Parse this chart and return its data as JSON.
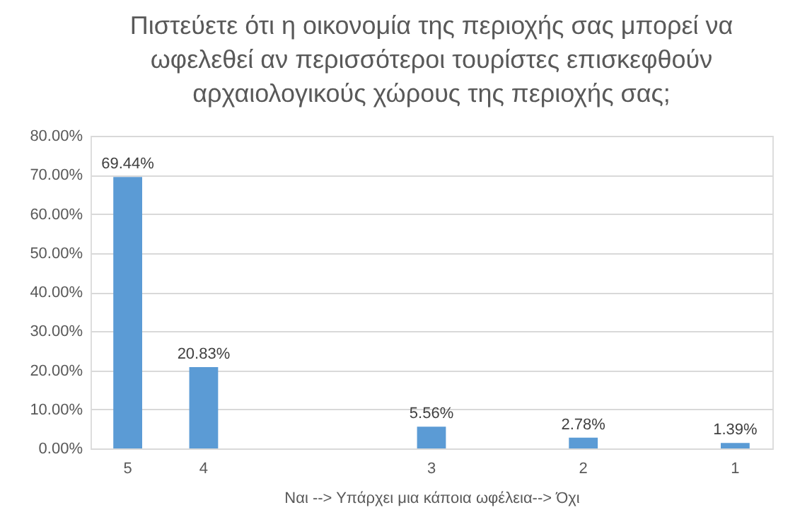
{
  "chart_data": {
    "type": "bar",
    "title": "Πιστεύετε ότι η οικονομία της περιοχής σας μπορεί να ωφελεθεί αν περισσότεροι τουρίστες επισκεφθούν αρχαιολογικούς χώρους της περιοχής σας;",
    "xlabel": "Ναι --> Υπάρχει μια κάποια ωφέλεια--> Όχι",
    "categories": [
      "5",
      "4",
      null,
      null,
      "3",
      null,
      "2",
      null,
      "1"
    ],
    "values": [
      69.44,
      20.83,
      null,
      null,
      5.56,
      null,
      2.78,
      null,
      1.39
    ],
    "value_labels": [
      "69.44%",
      "20.83%",
      null,
      null,
      "5.56%",
      null,
      "2.78%",
      null,
      "1.39%"
    ],
    "color": "#5b9bd5",
    "ylim": [
      0,
      80
    ],
    "yticks": [
      {
        "value": 0,
        "label": "0.00%"
      },
      {
        "value": 10,
        "label": "10.00%"
      },
      {
        "value": 20,
        "label": "20.00%"
      },
      {
        "value": 30,
        "label": "30.00%"
      },
      {
        "value": 40,
        "label": "40.00%"
      },
      {
        "value": 50,
        "label": "50.00%"
      },
      {
        "value": 60,
        "label": "60.00%"
      },
      {
        "value": 70,
        "label": "70.00%"
      },
      {
        "value": 80,
        "label": "80.00%"
      }
    ],
    "grid": "y"
  }
}
